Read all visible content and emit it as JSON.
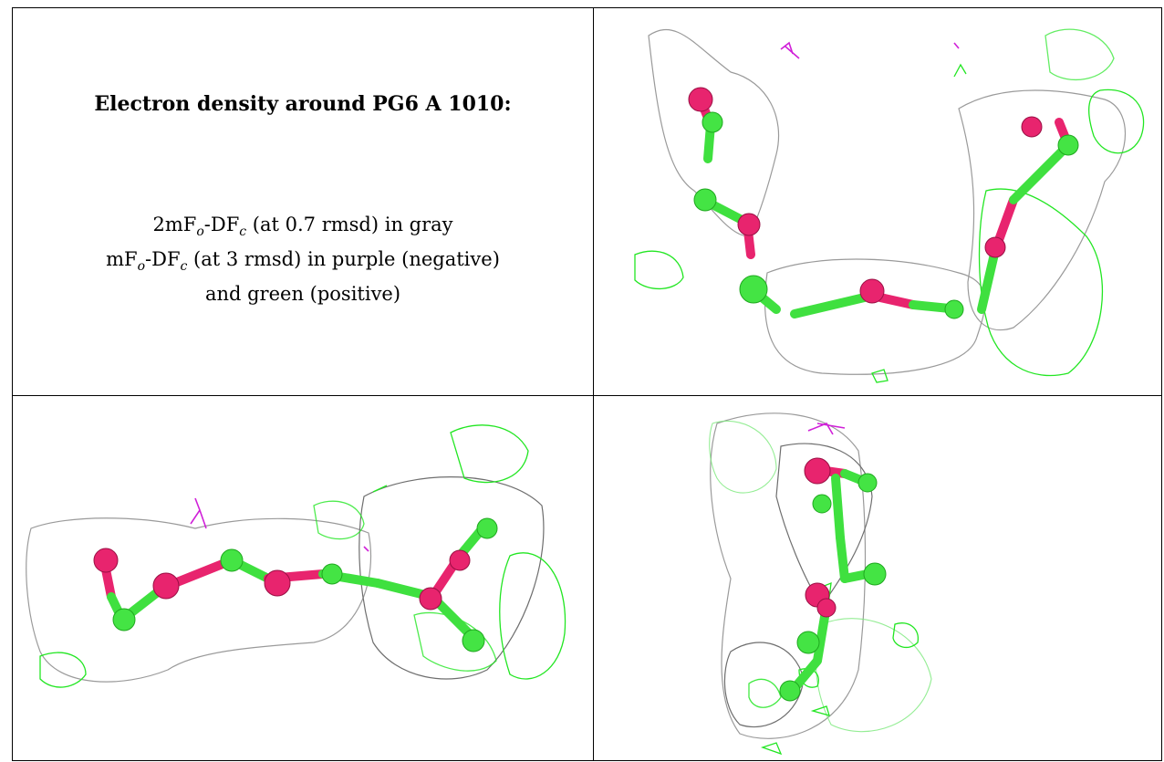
{
  "panel": {
    "title": "Electron density around PG6 A 1010:",
    "legend": {
      "line1": {
        "prefix": "2mF",
        "sub1": "o",
        "mid": "-DF",
        "sub2": "c",
        "suffix": " (at 0.7 rmsd) in gray"
      },
      "line2": {
        "prefix": "mF",
        "sub1": "o",
        "mid": "-DF",
        "sub2": "c",
        "suffix": " (at 3 rmsd) in purple (negative)"
      },
      "line3": "and green (positive)"
    }
  },
  "colors": {
    "density_2fofc": "#9a9a9a",
    "density_positive": "#22e622",
    "density_negative": "#d020d8",
    "carbon": "#44e444",
    "oxygen": "#e8246e"
  }
}
